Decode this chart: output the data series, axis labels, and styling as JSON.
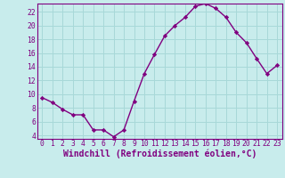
{
  "x": [
    0,
    1,
    2,
    3,
    4,
    5,
    6,
    7,
    8,
    9,
    10,
    11,
    12,
    13,
    14,
    15,
    16,
    17,
    18,
    19,
    20,
    21,
    22,
    23
  ],
  "y": [
    9.5,
    8.8,
    7.8,
    7.0,
    7.0,
    4.8,
    4.8,
    3.8,
    4.8,
    9.0,
    13.0,
    15.8,
    18.5,
    20.0,
    21.2,
    22.8,
    23.2,
    22.5,
    21.2,
    19.0,
    17.5,
    15.2,
    13.0,
    14.2
  ],
  "line_color": "#800080",
  "marker": "D",
  "marker_size": 2.2,
  "bg_color": "#c8ecec",
  "grid_color": "#a8d8d8",
  "xlabel": "Windchill (Refroidissement éolien,°C)",
  "xlim": [
    -0.5,
    23.5
  ],
  "ylim": [
    3.5,
    23.2
  ],
  "yticks": [
    4,
    6,
    8,
    10,
    12,
    14,
    16,
    18,
    20,
    22
  ],
  "xticks": [
    0,
    1,
    2,
    3,
    4,
    5,
    6,
    7,
    8,
    9,
    10,
    11,
    12,
    13,
    14,
    15,
    16,
    17,
    18,
    19,
    20,
    21,
    22,
    23
  ],
  "tick_fontsize": 5.8,
  "label_fontsize": 7.0,
  "line_width": 1.0
}
